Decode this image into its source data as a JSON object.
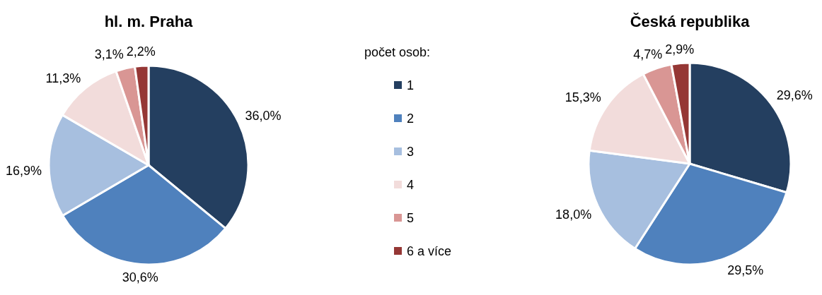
{
  "chart_data": [
    {
      "type": "pie",
      "title": "hl. m. Praha",
      "legend": "right",
      "legend_title": "počet osob:",
      "categories": [
        "1",
        "2",
        "3",
        "4",
        "5",
        "6 a více"
      ],
      "values": [
        36.0,
        30.6,
        16.9,
        11.3,
        3.1,
        2.2
      ],
      "value_labels": [
        "36,0%",
        "30,6%",
        "16,9%",
        "11,3%",
        "3,1%",
        "2,2%"
      ],
      "colors": [
        "#243f60",
        "#4f81bd",
        "#a7bfdf",
        "#f2dcdb",
        "#d99694",
        "#953735"
      ]
    },
    {
      "type": "pie",
      "title": "Česká republika",
      "categories": [
        null,
        null,
        null,
        null,
        null,
        null
      ],
      "values": [
        29.6,
        29.5,
        18.0,
        15.3,
        4.7,
        2.9
      ],
      "value_labels": [
        "29,6%",
        "29,5%",
        "18,0%",
        "15,3%",
        "4,7%",
        "2,9%"
      ],
      "colors": [
        "#243f60",
        "#4f81bd",
        "#a7bfdf",
        "#f2dcdb",
        "#d99694",
        "#953735"
      ]
    }
  ]
}
